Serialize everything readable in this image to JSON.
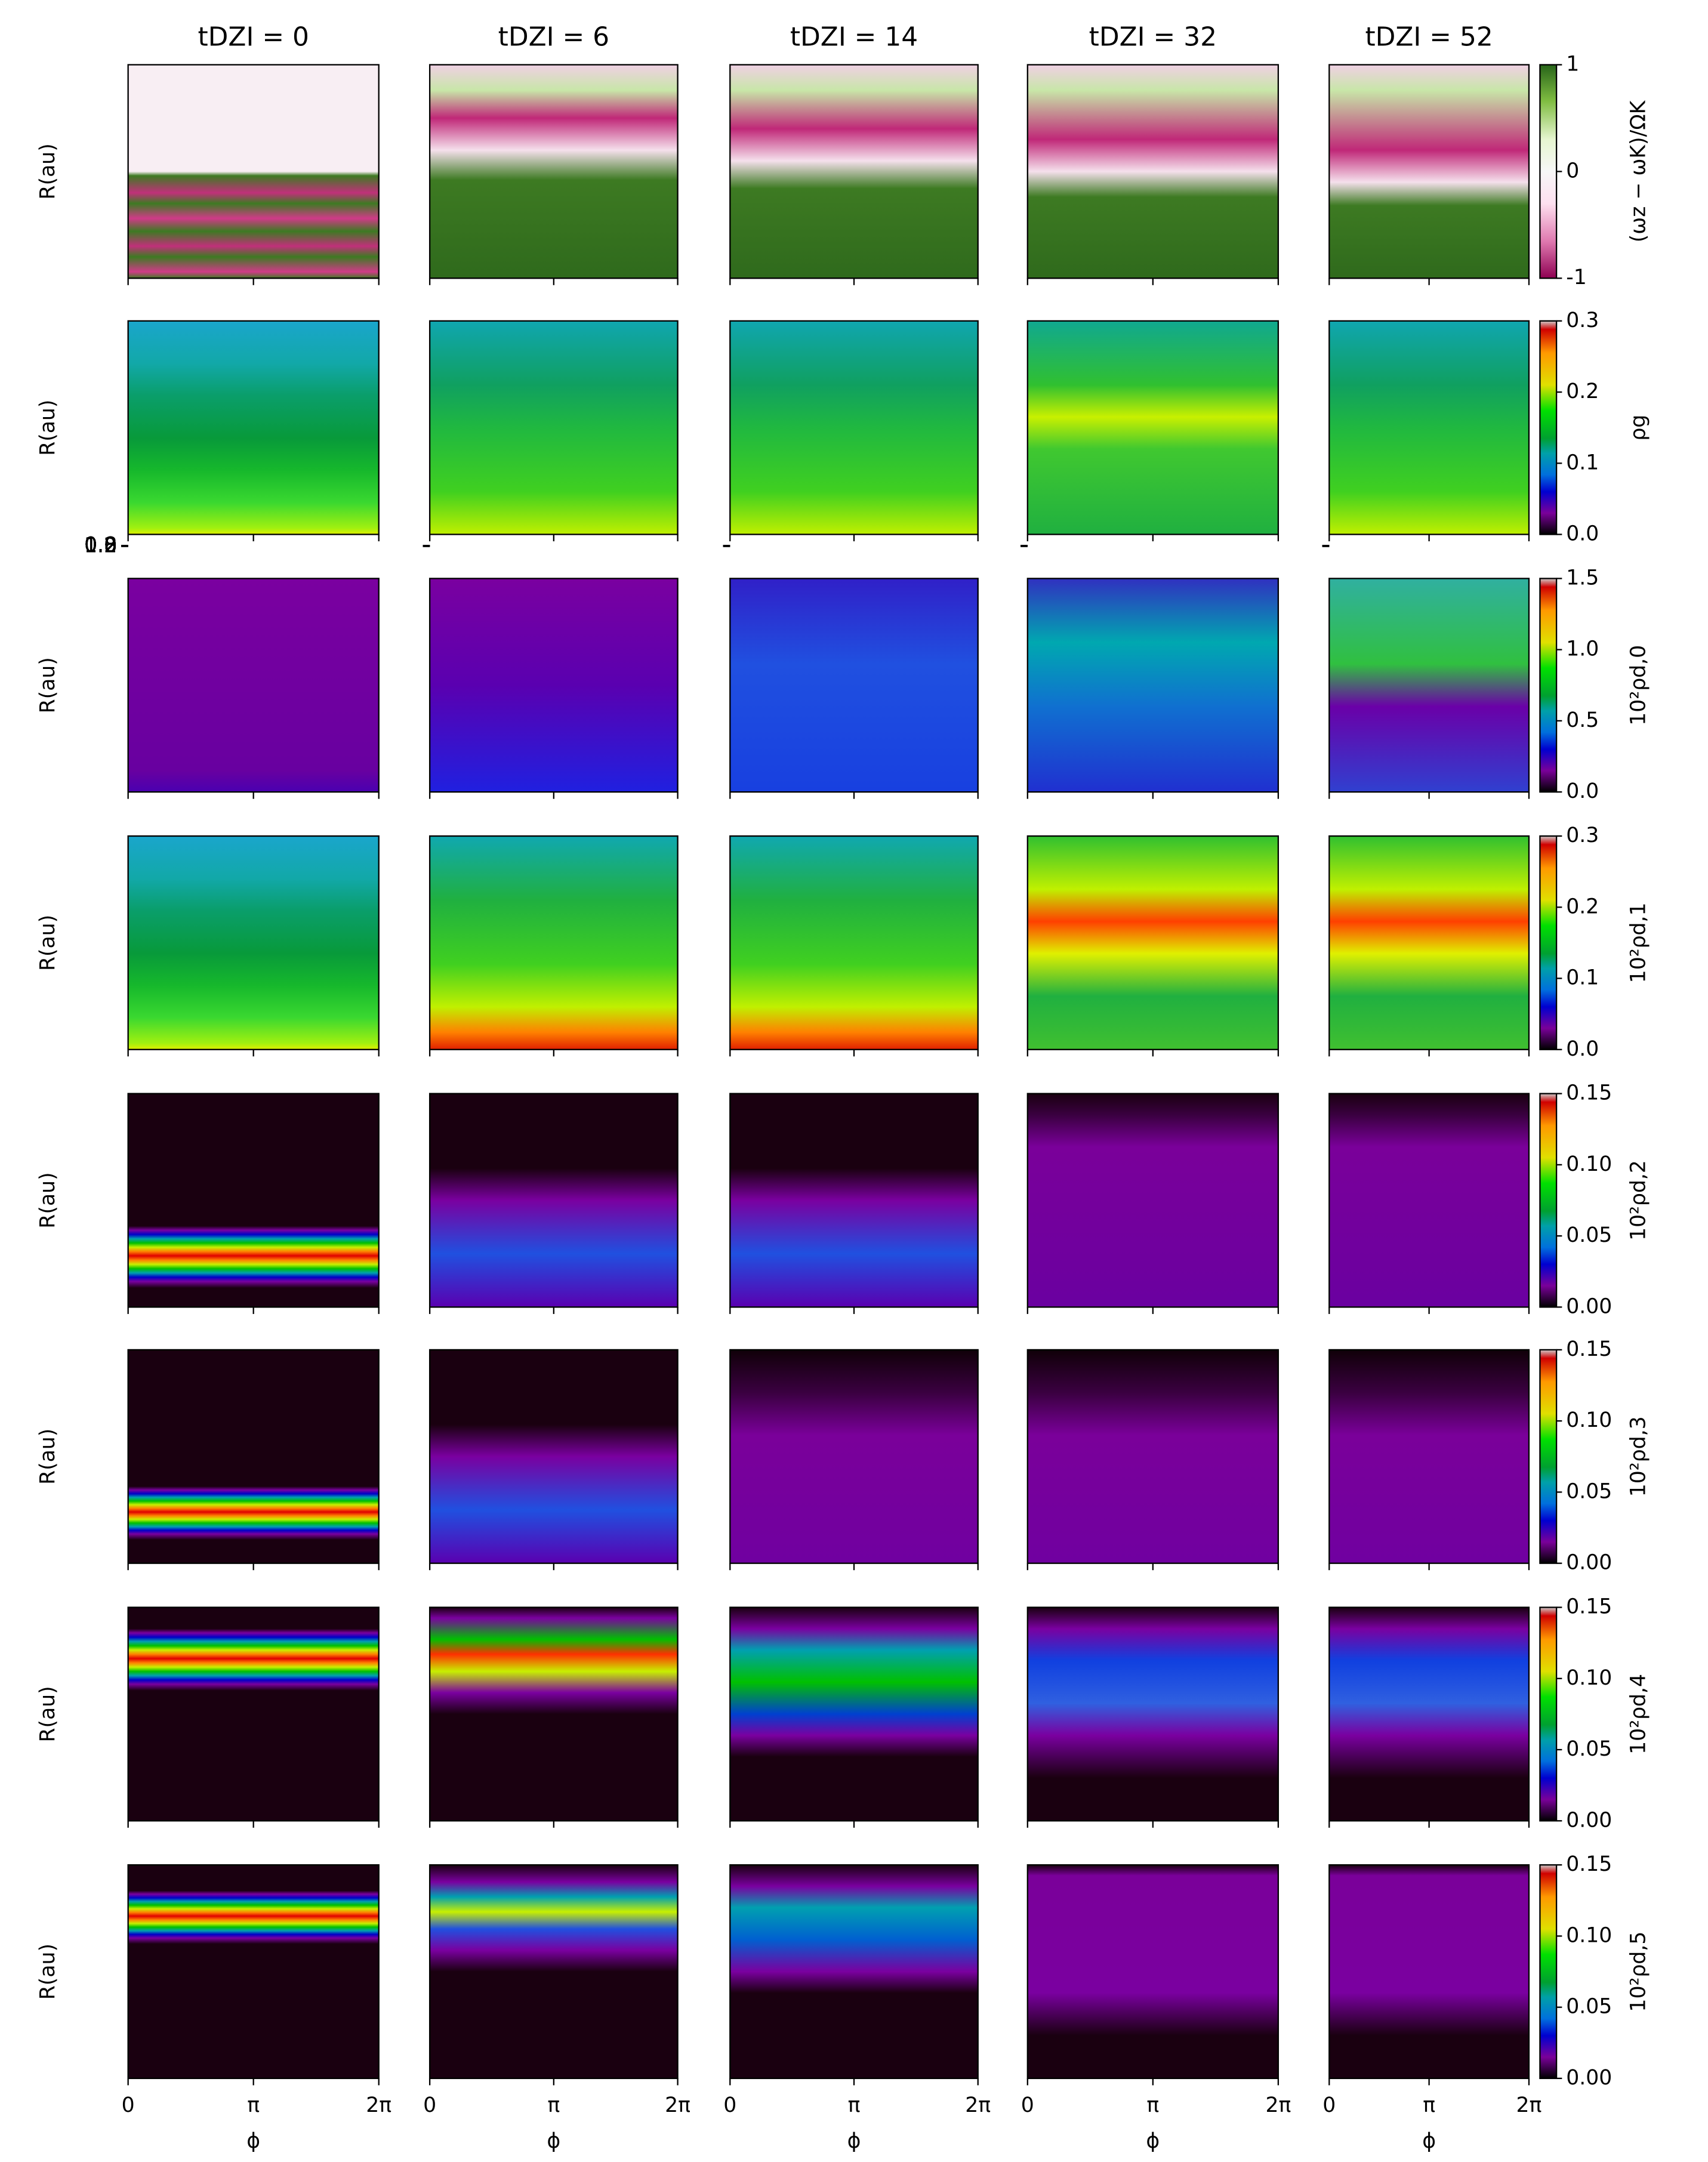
{
  "figure": {
    "column_titles": [
      "tDZI = 0",
      "tDZI = 6",
      "tDZI = 14",
      "tDZI = 32",
      "tDZI = 52"
    ],
    "ylabel": "R(au)",
    "xlabel": "ϕ",
    "ylim": [
      0.76,
      1.25
    ],
    "yticks": [
      0.8,
      {
        "value": 1.0,
        "label": "1.0"
      },
      1.2
    ],
    "xlim": [
      0,
      6.2832
    ],
    "xticks": [
      0,
      {
        "value": 3.1416,
        "label": "π"
      },
      {
        "value": 6.2832,
        "label": "2π"
      }
    ],
    "rows": [
      {
        "colorbar_label": "(ωz − ωK)/ΩK",
        "colormap": "PiYG",
        "clim": [
          -1,
          1
        ],
        "cticks": [
          -1,
          0,
          1
        ]
      },
      {
        "colorbar_label": "ρg",
        "colormap": "nipy_spectral",
        "clim": [
          0,
          0.3
        ],
        "cticks": [
          {
            "value": 0,
            "label": "0.0"
          },
          0.1,
          0.2,
          0.3
        ]
      },
      {
        "colorbar_label": "10²ρd,0",
        "colormap": "nipy_spectral",
        "clim": [
          0,
          1.5
        ],
        "cticks": [
          {
            "value": 0,
            "label": "0.0"
          },
          0.5,
          {
            "value": 1.0,
            "label": "1.0"
          },
          1.5
        ]
      },
      {
        "colorbar_label": "10²ρd,1",
        "colormap": "nipy_spectral",
        "clim": [
          0,
          0.3
        ],
        "cticks": [
          {
            "value": 0,
            "label": "0.0"
          },
          0.1,
          0.2,
          0.3
        ]
      },
      {
        "colorbar_label": "10²ρd,2",
        "colormap": "nipy_spectral",
        "clim": [
          0,
          0.15
        ],
        "cticks": [
          {
            "value": 0,
            "label": "0.00"
          },
          0.05,
          {
            "value": 0.1,
            "label": "0.10"
          },
          0.15
        ]
      },
      {
        "colorbar_label": "10²ρd,3",
        "colormap": "nipy_spectral",
        "clim": [
          0,
          0.15
        ],
        "cticks": [
          {
            "value": 0,
            "label": "0.00"
          },
          0.05,
          {
            "value": 0.1,
            "label": "0.10"
          },
          0.15
        ]
      },
      {
        "colorbar_label": "10²ρd,4",
        "colormap": "nipy_spectral",
        "clim": [
          0,
          0.15
        ],
        "cticks": [
          {
            "value": 0,
            "label": "0.00"
          },
          0.05,
          {
            "value": 0.1,
            "label": "0.10"
          },
          0.15
        ]
      },
      {
        "colorbar_label": "10²ρd,5",
        "colormap": "nipy_spectral",
        "clim": [
          0,
          0.15
        ],
        "cticks": [
          {
            "value": 0,
            "label": "0.00"
          },
          0.05,
          {
            "value": 0.1,
            "label": "0.10"
          },
          0.15
        ]
      }
    ]
  }
}
